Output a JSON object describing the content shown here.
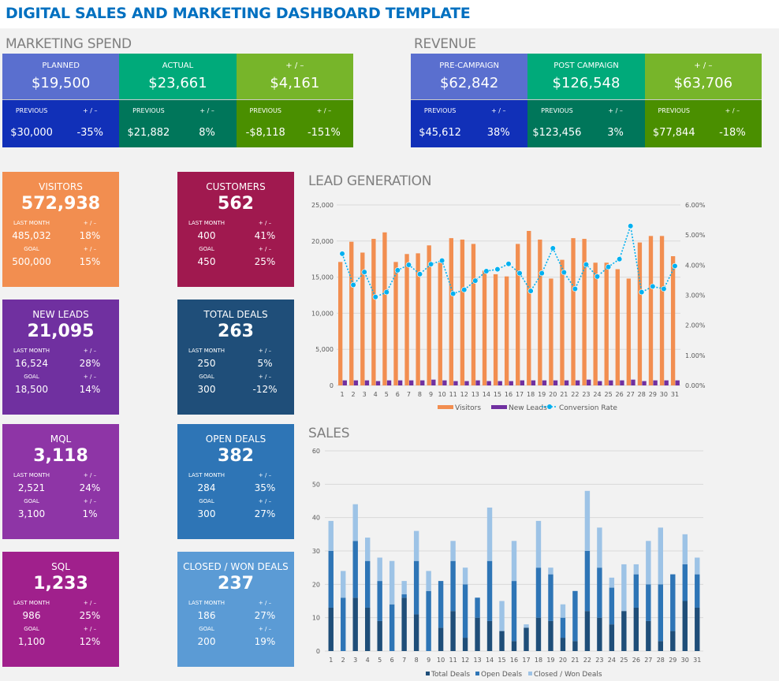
{
  "title": "DIGITAL SALES AND MARKETING DASHBOARD TEMPLATE",
  "marketing_spend": {
    "label": "MARKETING SPEND",
    "cols": [
      {
        "label": "PLANNED",
        "value": "$19,500",
        "prev_label": "PREVIOUS",
        "prev": "$30,000",
        "diff_label": "+ / –",
        "diff": "-35%",
        "color": "#5a6fcf",
        "dark": "#1130b8"
      },
      {
        "label": "ACTUAL",
        "value": "$23,661",
        "prev_label": "PREVIOUS",
        "prev": "$21,882",
        "diff_label": "+ / –",
        "diff": "8%",
        "color": "#00aa7a",
        "dark": "#00765a"
      },
      {
        "label": "+ / –",
        "value": "$4,161",
        "prev_label": "PREVIOUS",
        "prev": "-$8,118",
        "diff_label": "+ / –",
        "diff": "-151%",
        "color": "#77b52a",
        "dark": "#4a8f00"
      }
    ]
  },
  "revenue": {
    "label": "REVENUE",
    "cols": [
      {
        "label": "PRE-CAMPAIGN",
        "value": "$62,842",
        "prev_label": "PREVIOUS",
        "prev": "$45,612",
        "diff_label": "+ / –",
        "diff": "38%",
        "color": "#5a6fcf",
        "dark": "#1130b8"
      },
      {
        "label": "POST CAMPAIGN",
        "value": "$126,548",
        "prev_label": "PREVIOUS",
        "prev": "$123,456",
        "diff_label": "+ / –",
        "diff": "3%",
        "color": "#00aa7a",
        "dark": "#00765a"
      },
      {
        "label": "+ / –",
        "value": "$63,706",
        "prev_label": "PREVIOUS",
        "prev": "$77,844",
        "diff_label": "+ / –",
        "diff": "-18%",
        "color": "#77b52a",
        "dark": "#4a8f00"
      }
    ]
  },
  "kpis": [
    {
      "label": "VISITORS",
      "value": "572,938",
      "lm_label": "LAST MONTH",
      "lm": "485,032",
      "lm_diff": "18%",
      "goal_label": "GOAL",
      "goal": "500,000",
      "goal_diff": "15%",
      "pm": "+ / –",
      "color": "#f28e50"
    },
    {
      "label": "CUSTOMERS",
      "value": "562",
      "lm_label": "LAST MONTH",
      "lm": "400",
      "lm_diff": "41%",
      "goal_label": "GOAL",
      "goal": "450",
      "goal_diff": "25%",
      "pm": "+ / –",
      "color": "#a0194f"
    },
    {
      "label": "NEW LEADS",
      "value": "21,095",
      "lm_label": "LAST MONTH",
      "lm": "16,524",
      "lm_diff": "28%",
      "goal_label": "GOAL",
      "goal": "18,500",
      "goal_diff": "14%",
      "pm": "+ / –",
      "color": "#7030a0"
    },
    {
      "label": "TOTAL DEALS",
      "value": "263",
      "lm_label": "LAST MONTH",
      "lm": "250",
      "lm_diff": "5%",
      "goal_label": "GOAL",
      "goal": "300",
      "goal_diff": "-12%",
      "pm": "+ / –",
      "color": "#1f4e79"
    },
    {
      "label": "MQL",
      "value": "3,118",
      "lm_label": "LAST MONTH",
      "lm": "2,521",
      "lm_diff": "24%",
      "goal_label": "GOAL",
      "goal": "3,100",
      "goal_diff": "1%",
      "pm": "+ / –",
      "color": "#8e35a6"
    },
    {
      "label": "OPEN DEALS",
      "value": "382",
      "lm_label": "LAST MONTH",
      "lm": "284",
      "lm_diff": "35%",
      "goal_label": "GOAL",
      "goal": "300",
      "goal_diff": "27%",
      "pm": "+ / –",
      "color": "#2e75b6"
    },
    {
      "label": "SQL",
      "value": "1,233",
      "lm_label": "LAST MONTH",
      "lm": "986",
      "lm_diff": "25%",
      "goal_label": "GOAL",
      "goal": "1,100",
      "goal_diff": "12%",
      "pm": "+ / –",
      "color": "#a0208c"
    },
    {
      "label": "CLOSED / WON DEALS",
      "value": "237",
      "lm_label": "LAST MONTH",
      "lm": "186",
      "lm_diff": "27%",
      "goal_label": "GOAL",
      "goal": "200",
      "goal_diff": "19%",
      "pm": "+ / –",
      "color": "#5b9bd5"
    }
  ],
  "chart_data": [
    {
      "type": "bar",
      "title": "LEAD GENERATION",
      "categories": [
        "1",
        "2",
        "3",
        "4",
        "5",
        "6",
        "7",
        "8",
        "9",
        "10",
        "11",
        "12",
        "13",
        "14",
        "15",
        "16",
        "17",
        "18",
        "19",
        "20",
        "21",
        "22",
        "23",
        "24",
        "25",
        "26",
        "27",
        "28",
        "29",
        "30",
        "31"
      ],
      "ylim": [
        0,
        25000
      ],
      "yticks": [
        "0",
        "5,000",
        "10,000",
        "15,000",
        "20,000",
        "25,000"
      ],
      "y2lim": [
        0,
        6
      ],
      "y2ticks": [
        "0.00%",
        "1.00%",
        "2.00%",
        "3.00%",
        "4.00%",
        "5.00%",
        "6.00%"
      ],
      "grid": true,
      "legend": "bottom",
      "series": [
        {
          "name": "Visitors",
          "type": "bar",
          "color": "#f28e50",
          "values": [
            17100,
            19900,
            18400,
            20300,
            21200,
            17100,
            18200,
            18300,
            19400,
            17000,
            20400,
            20200,
            19600,
            15900,
            15400,
            15100,
            19600,
            21400,
            20200,
            14800,
            17400,
            20400,
            20300,
            17000,
            17000,
            16100,
            14800,
            19800,
            20700,
            20700,
            17900
          ]
        },
        {
          "name": "New Leads",
          "type": "bar",
          "color": "#7030a0",
          "values": [
            700,
            700,
            700,
            600,
            700,
            700,
            700,
            700,
            800,
            700,
            600,
            600,
            700,
            600,
            600,
            600,
            700,
            700,
            700,
            700,
            700,
            700,
            800,
            600,
            700,
            700,
            800,
            600,
            700,
            700,
            700
          ]
        },
        {
          "name": "Conversion Rate",
          "type": "line",
          "axis": "right",
          "color": "#00b0f0",
          "values": [
            4.38,
            3.34,
            3.77,
            2.94,
            3.1,
            3.83,
            4.01,
            3.7,
            4.03,
            4.15,
            3.05,
            3.18,
            3.48,
            3.8,
            3.86,
            4.04,
            3.73,
            3.14,
            3.73,
            4.56,
            3.76,
            3.21,
            4.02,
            3.62,
            3.94,
            4.2,
            5.3,
            3.1,
            3.29,
            3.21,
            3.97
          ]
        }
      ]
    },
    {
      "type": "bar",
      "stacked": true,
      "title": "SALES",
      "categories": [
        "1",
        "2",
        "3",
        "4",
        "5",
        "6",
        "7",
        "8",
        "9",
        "10",
        "11",
        "12",
        "13",
        "14",
        "15",
        "16",
        "17",
        "18",
        "19",
        "20",
        "21",
        "22",
        "23",
        "24",
        "25",
        "26",
        "27",
        "28",
        "29",
        "30",
        "31"
      ],
      "ylim": [
        0,
        60
      ],
      "yticks": [
        "0",
        "10",
        "20",
        "30",
        "40",
        "50",
        "60"
      ],
      "grid": true,
      "legend": "bottom",
      "series": [
        {
          "name": "Total Deals",
          "color": "#1f4e79",
          "values": [
            13,
            0,
            16,
            13,
            9,
            0,
            16,
            11,
            0,
            7,
            12,
            4,
            10,
            9,
            6,
            3,
            7,
            10,
            9,
            4,
            3,
            12,
            10,
            8,
            12,
            13,
            9,
            3,
            6,
            15,
            13
          ]
        },
        {
          "name": "Open Deals",
          "color": "#2e75b6",
          "values": [
            17,
            16,
            17,
            14,
            12,
            14,
            1,
            16,
            18,
            14,
            15,
            16,
            6,
            18,
            0,
            18,
            0,
            15,
            14,
            6,
            15,
            18,
            15,
            11,
            0,
            10,
            11,
            17,
            17,
            11,
            10
          ]
        },
        {
          "name": "Closed / Won Deals",
          "color": "#9dc3e6",
          "values": [
            9,
            8,
            11,
            7,
            7,
            13,
            4,
            9,
            6,
            0,
            6,
            5,
            0,
            16,
            9,
            12,
            1,
            14,
            2,
            4,
            0,
            18,
            12,
            3,
            14,
            3,
            13,
            17,
            0,
            9,
            5
          ]
        }
      ]
    }
  ]
}
